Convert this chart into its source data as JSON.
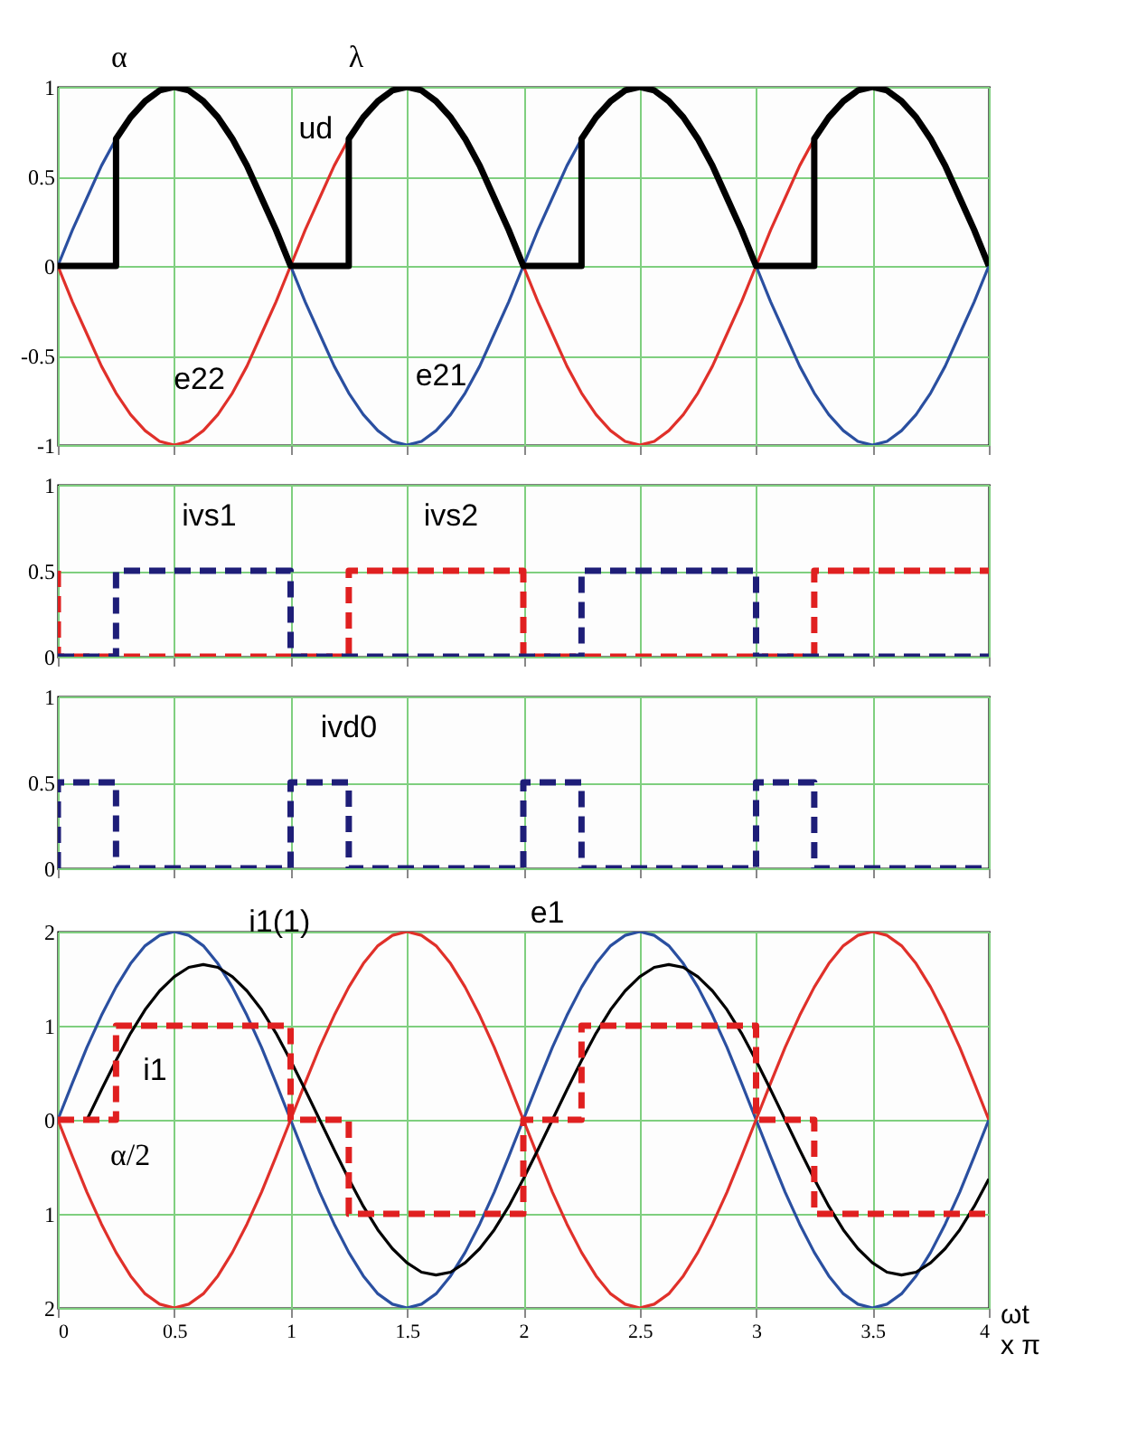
{
  "chart_data": [
    {
      "type": "line",
      "xlim": [
        0,
        4
      ],
      "xticks": [
        0,
        0.5,
        1,
        1.5,
        2,
        2.5,
        3,
        3.5,
        4
      ],
      "ylim": [
        -1,
        1
      ],
      "yticks": [
        -1,
        -0.5,
        0,
        0.5,
        1
      ],
      "grid": true,
      "tick_labels": "y",
      "annotations": [
        "α",
        "λ"
      ],
      "series": [
        {
          "name": "e21",
          "color": "#2a4fa0",
          "x": [
            0,
            0.0625,
            0.125,
            0.1875,
            0.25,
            0.3125,
            0.375,
            0.4375,
            0.5,
            0.5625,
            0.625,
            0.6875,
            0.75,
            0.8125,
            0.875,
            0.9375,
            1,
            1.0625,
            1.125,
            1.1875,
            1.25,
            1.3125,
            1.375,
            1.4375,
            1.5,
            1.5625,
            1.625,
            1.6875,
            1.75,
            1.8125,
            1.875,
            1.9375,
            2,
            2.0625,
            2.125,
            2.1875,
            2.25,
            2.3125,
            2.375,
            2.4375,
            2.5,
            2.5625,
            2.625,
            2.6875,
            2.75,
            2.8125,
            2.875,
            2.9375,
            3,
            3.0625,
            3.125,
            3.1875,
            3.25,
            3.3125,
            3.375,
            3.4375,
            3.5,
            3.5625,
            3.625,
            3.6875,
            3.75,
            3.8125,
            3.875,
            3.9375,
            4
          ],
          "values": [
            0,
            0.2,
            0.38,
            0.56,
            0.71,
            0.83,
            0.92,
            0.98,
            1,
            0.98,
            0.92,
            0.83,
            0.71,
            0.56,
            0.38,
            0.2,
            0,
            -0.2,
            -0.38,
            -0.56,
            -0.71,
            -0.83,
            -0.92,
            -0.98,
            -1,
            -0.98,
            -0.92,
            -0.83,
            -0.71,
            -0.56,
            -0.38,
            -0.2,
            0,
            0.2,
            0.38,
            0.56,
            0.71,
            0.83,
            0.92,
            0.98,
            1,
            0.98,
            0.92,
            0.83,
            0.71,
            0.56,
            0.38,
            0.2,
            0,
            -0.2,
            -0.38,
            -0.56,
            -0.71,
            -0.83,
            -0.92,
            -0.98,
            -1,
            -0.98,
            -0.92,
            -0.83,
            -0.71,
            -0.56,
            -0.38,
            -0.2,
            0
          ]
        },
        {
          "name": "e22",
          "color": "#e0302a",
          "x": [
            0,
            0.0625,
            0.125,
            0.1875,
            0.25,
            0.3125,
            0.375,
            0.4375,
            0.5,
            0.5625,
            0.625,
            0.6875,
            0.75,
            0.8125,
            0.875,
            0.9375,
            1,
            1.0625,
            1.125,
            1.1875,
            1.25,
            1.3125,
            1.375,
            1.4375,
            1.5,
            1.5625,
            1.625,
            1.6875,
            1.75,
            1.8125,
            1.875,
            1.9375,
            2,
            2.0625,
            2.125,
            2.1875,
            2.25,
            2.3125,
            2.375,
            2.4375,
            2.5,
            2.5625,
            2.625,
            2.6875,
            2.75,
            2.8125,
            2.875,
            2.9375,
            3,
            3.0625,
            3.125,
            3.1875,
            3.25,
            3.3125
          ],
          "values": [
            0,
            -0.2,
            -0.38,
            -0.56,
            -0.71,
            -0.83,
            -0.92,
            -0.98,
            -1,
            -0.98,
            -0.92,
            -0.83,
            -0.71,
            -0.56,
            -0.38,
            -0.2,
            0,
            0.2,
            0.38,
            0.56,
            0.71,
            0.83,
            0.92,
            0.98,
            1,
            0.98,
            0.92,
            0.83,
            0.71,
            0.56,
            0.38,
            0.2,
            0,
            -0.2,
            -0.38,
            -0.56,
            -0.71,
            -0.83,
            -0.92,
            -0.98,
            -1,
            -0.98,
            -0.92,
            -0.83,
            -0.71,
            -0.56,
            -0.38,
            -0.2,
            0,
            0.2,
            0.38,
            0.56,
            0.71,
            0.83
          ]
        },
        {
          "name": "ud",
          "color": "#000000",
          "x": [
            0,
            0.25,
            0.25,
            0.3125,
            0.375,
            0.4375,
            0.5,
            0.5625,
            0.625,
            0.6875,
            0.75,
            0.8125,
            0.875,
            0.9375,
            1,
            1.25,
            1.25,
            1.3125,
            1.375,
            1.4375,
            1.5,
            1.5625,
            1.625,
            1.6875,
            1.75,
            1.8125,
            1.875,
            1.9375,
            2,
            2.25,
            2.25,
            2.3125,
            2.375,
            2.4375,
            2.5,
            2.5625,
            2.625,
            2.6875,
            2.75,
            2.8125,
            2.875,
            2.9375,
            3,
            3.25,
            3.25,
            3.3125,
            3.375,
            3.4375,
            3.5,
            3.5625,
            3.625,
            3.6875,
            3.75,
            3.8125,
            3.875,
            3.9375,
            4
          ],
          "values": [
            0,
            0,
            0.71,
            0.83,
            0.92,
            0.98,
            1,
            0.98,
            0.92,
            0.83,
            0.71,
            0.56,
            0.38,
            0.2,
            0,
            0,
            0.71,
            0.83,
            0.92,
            0.98,
            1,
            0.98,
            0.92,
            0.83,
            0.71,
            0.56,
            0.38,
            0.2,
            0,
            0,
            0.71,
            0.83,
            0.92,
            0.98,
            1,
            0.98,
            0.92,
            0.83,
            0.71,
            0.56,
            0.38,
            0.2,
            0,
            0,
            0.71,
            0.83,
            0.92,
            0.98,
            1,
            0.98,
            0.92,
            0.83,
            0.71,
            0.56,
            0.38,
            0.2,
            0
          ]
        }
      ]
    },
    {
      "type": "line",
      "xlim": [
        0,
        4
      ],
      "xticks": [
        0,
        0.5,
        1,
        1.5,
        2,
        2.5,
        3,
        3.5,
        4
      ],
      "ylim": [
        0,
        1
      ],
      "yticks": [
        0,
        0.5,
        1
      ],
      "grid": true,
      "tick_labels": "y",
      "series": [
        {
          "name": "ivs2",
          "color": "#e02020",
          "line_style": "dashed",
          "x": [
            0,
            0,
            1.25,
            1.25,
            2,
            2,
            3.25,
            3.25,
            4
          ],
          "values": [
            0.5,
            0,
            0,
            0.5,
            0.5,
            0,
            0,
            0.5,
            0.5
          ]
        },
        {
          "name": "ivs1",
          "color": "#1e1e78",
          "line_style": "dashed",
          "x": [
            0,
            0.25,
            0.25,
            1,
            1,
            2.25,
            2.25,
            3,
            3,
            4
          ],
          "values": [
            0,
            0,
            0.5,
            0.5,
            0,
            0,
            0.5,
            0.5,
            0,
            0
          ]
        }
      ]
    },
    {
      "type": "line",
      "xlim": [
        0,
        4
      ],
      "xticks": [
        0,
        0.5,
        1,
        1.5,
        2,
        2.5,
        3,
        3.5,
        4
      ],
      "ylim": [
        0,
        1
      ],
      "yticks": [
        0,
        0.5,
        1
      ],
      "grid": true,
      "tick_labels": "y",
      "series": [
        {
          "name": "ivd0",
          "color": "#1e1e78",
          "line_style": "dashed",
          "x": [
            0,
            0,
            0.25,
            0.25,
            1,
            1,
            1.25,
            1.25,
            2,
            2,
            2.25,
            2.25,
            3,
            3,
            3.25,
            3.25,
            4
          ],
          "values": [
            0,
            0.5,
            0.5,
            0,
            0,
            0.5,
            0.5,
            0,
            0,
            0.5,
            0.5,
            0,
            0,
            0.5,
            0.5,
            0,
            0
          ]
        }
      ]
    },
    {
      "type": "line",
      "xlim": [
        0,
        4
      ],
      "xticks": [
        0,
        0.5,
        1,
        1.5,
        2,
        2.5,
        3,
        3.5,
        4
      ],
      "ylim": [
        -2,
        2
      ],
      "yticks": [
        {
          "value": -2,
          "label": "2"
        },
        {
          "value": -1,
          "label": "1"
        },
        0,
        1,
        2
      ],
      "grid": true,
      "xlabel": "ωt\nx π",
      "annotations": [
        {
          "text": "α/2",
          "x": 0.0625,
          "y": -0.65
        }
      ],
      "series": [
        {
          "name": "e1",
          "color": "#2a4fa0",
          "x": [
            0,
            0.0625,
            0.125,
            0.1875,
            0.25,
            0.3125,
            0.375,
            0.4375,
            0.5,
            0.5625,
            0.625,
            0.6875,
            0.75,
            0.8125,
            0.875,
            0.9375,
            1,
            1.0625,
            1.125,
            1.1875,
            1.25,
            1.3125,
            1.375,
            1.4375,
            1.5,
            1.5625,
            1.625,
            1.6875,
            1.75,
            1.8125,
            1.875,
            1.9375,
            2,
            2.0625,
            2.125,
            2.1875,
            2.25,
            2.3125,
            2.375,
            2.4375,
            2.5,
            2.5625,
            2.625,
            2.6875,
            2.75,
            2.8125,
            2.875,
            2.9375,
            3,
            3.0625,
            3.125,
            3.1875,
            3.25,
            3.3125,
            3.375,
            3.4375,
            3.5,
            3.5625,
            3.625,
            3.6875,
            3.75,
            3.8125,
            3.875,
            3.9375,
            4
          ],
          "values": [
            0,
            0.39,
            0.77,
            1.11,
            1.41,
            1.66,
            1.85,
            1.96,
            2,
            1.96,
            1.85,
            1.66,
            1.41,
            1.11,
            0.77,
            0.39,
            0,
            -0.39,
            -0.77,
            -1.11,
            -1.41,
            -1.66,
            -1.85,
            -1.96,
            -2,
            -1.96,
            -1.85,
            -1.66,
            -1.41,
            -1.11,
            -0.77,
            -0.39,
            0,
            0.39,
            0.77,
            1.11,
            1.41,
            1.66,
            1.85,
            1.96,
            2,
            1.96,
            1.85,
            1.66,
            1.41,
            1.11,
            0.77,
            0.39,
            0,
            -0.39,
            -0.77,
            -1.11,
            -1.41,
            -1.66,
            -1.85,
            -1.96,
            -2,
            -1.96,
            -1.85,
            -1.66,
            -1.41,
            -1.11,
            -0.77,
            -0.39,
            0
          ]
        },
        {
          "color": "#e0302a",
          "x": [
            0,
            0.0625,
            0.125,
            0.1875,
            0.25,
            0.3125,
            0.375,
            0.4375,
            0.5,
            0.5625,
            0.625,
            0.6875,
            0.75,
            0.8125,
            0.875,
            0.9375,
            1,
            1.0625,
            1.125,
            1.1875,
            1.25,
            1.3125,
            1.375,
            1.4375,
            1.5,
            1.5625,
            1.625,
            1.6875,
            1.75,
            1.8125,
            1.875,
            1.9375,
            2,
            2.0625,
            2.125,
            2.1875,
            2.25,
            2.3125,
            2.375,
            2.4375,
            2.5,
            2.5625,
            2.625,
            2.6875,
            2.75,
            2.8125,
            2.875,
            2.9375,
            3,
            3.0625,
            3.125,
            3.1875,
            3.25,
            3.3125,
            3.375,
            3.4375,
            3.5,
            3.5625,
            3.625,
            3.6875,
            3.75,
            3.8125,
            3.875,
            3.9375,
            4
          ],
          "values": [
            0,
            -0.39,
            -0.77,
            -1.11,
            -1.41,
            -1.66,
            -1.85,
            -1.96,
            -2,
            -1.96,
            -1.85,
            -1.66,
            -1.41,
            -1.11,
            -0.77,
            -0.39,
            0,
            0.39,
            0.77,
            1.11,
            1.41,
            1.66,
            1.85,
            1.96,
            2,
            1.96,
            1.85,
            1.66,
            1.41,
            1.11,
            0.77,
            0.39,
            0,
            -0.39,
            -0.77,
            -1.11,
            -1.41,
            -1.66,
            -1.85,
            -1.96,
            -2,
            -1.96,
            -1.85,
            -1.66,
            -1.41,
            -1.11,
            -0.77,
            -0.39,
            0,
            0.39,
            0.77,
            1.11,
            1.41,
            1.66,
            1.85,
            1.96,
            2,
            1.96,
            1.85,
            1.66,
            1.41,
            1.11,
            0.77,
            0.39,
            0
          ]
        },
        {
          "name": "i1(1)",
          "color": "#000000",
          "x": [
            0.125,
            0.1875,
            0.25,
            0.3125,
            0.375,
            0.4375,
            0.5,
            0.5625,
            0.625,
            0.6875,
            0.75,
            0.8125,
            0.875,
            0.9375,
            1,
            1.0625,
            1.125,
            1.1875,
            1.25,
            1.3125,
            1.375,
            1.4375,
            1.5,
            1.5625,
            1.625,
            1.6875,
            1.75,
            1.8125,
            1.875,
            1.9375,
            2,
            2.0625,
            2.125,
            2.1875,
            2.25,
            2.3125,
            2.375,
            2.4375,
            2.5,
            2.5625,
            2.625,
            2.6875,
            2.75,
            2.8125,
            2.875,
            2.9375,
            3,
            3.0625,
            3.125,
            3.1875,
            3.25,
            3.3125,
            3.375,
            3.4375,
            3.5,
            3.5625,
            3.625,
            3.6875,
            3.75,
            3.8125,
            3.875,
            3.9375,
            4
          ],
          "values": [
            0,
            0.32,
            0.63,
            0.92,
            1.17,
            1.37,
            1.52,
            1.62,
            1.65,
            1.62,
            1.52,
            1.37,
            1.17,
            0.92,
            0.63,
            0.32,
            0,
            -0.32,
            -0.63,
            -0.92,
            -1.17,
            -1.37,
            -1.52,
            -1.62,
            -1.65,
            -1.62,
            -1.52,
            -1.37,
            -1.17,
            -0.92,
            -0.63,
            -0.32,
            0,
            0.32,
            0.63,
            0.92,
            1.17,
            1.37,
            1.52,
            1.62,
            1.65,
            1.62,
            1.52,
            1.37,
            1.17,
            0.92,
            0.63,
            0.32,
            0,
            -0.32,
            -0.63,
            -0.92,
            -1.17,
            -1.37,
            -1.52,
            -1.62,
            -1.65,
            -1.62,
            -1.52,
            -1.37,
            -1.17,
            -0.92,
            -0.63
          ]
        },
        {
          "name": "i1",
          "color": "#e02020",
          "line_style": "dashed",
          "x": [
            0,
            0.25,
            0.25,
            1,
            1,
            1.25,
            1.25,
            2,
            2,
            2.25,
            2.25,
            3,
            3,
            3.25,
            3.25,
            4
          ],
          "values": [
            0,
            0,
            1,
            1,
            0,
            0,
            -1,
            -1,
            0,
            0,
            1,
            1,
            0,
            0,
            -1,
            -1
          ]
        }
      ]
    }
  ]
}
